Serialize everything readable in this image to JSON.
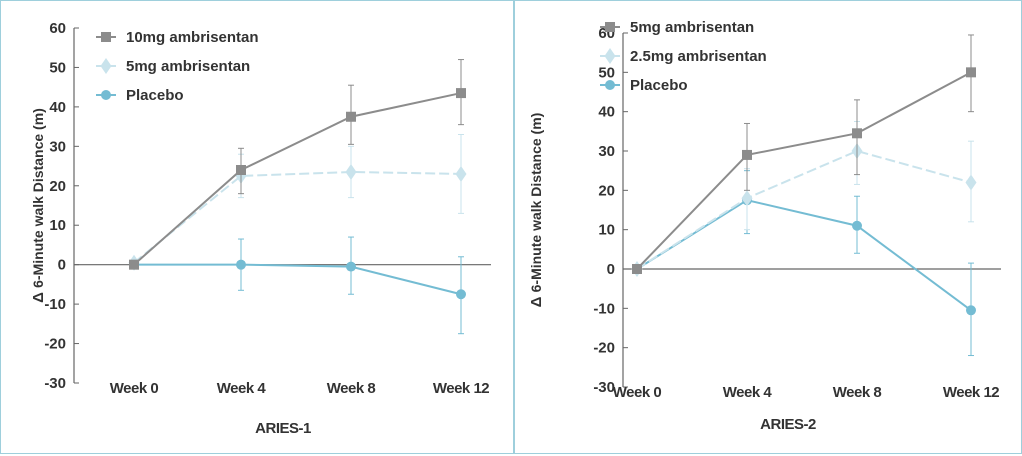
{
  "chart_data": [
    {
      "type": "line",
      "title": "ARIES-1",
      "ylabel": "6-Minute walk Distance (m)",
      "ylabel_prefix": "Δ",
      "categories": [
        "Week 0",
        "Week 4",
        "Week 8",
        "Week 12"
      ],
      "ylim": [
        -30,
        60
      ],
      "yticks": [
        60,
        50,
        40,
        30,
        20,
        10,
        0,
        -10,
        -20,
        -30
      ],
      "ytick_labels": [
        "60",
        "50",
        "40",
        "30",
        "20",
        "10",
        "0",
        "-10",
        "-20",
        "-30"
      ],
      "legend_position": "top-left",
      "series": [
        {
          "name": "10mg ambrisentan",
          "values": [
            0,
            24,
            37.5,
            43.5
          ],
          "err_low": [
            0,
            18,
            30.5,
            35.5
          ],
          "err_high": [
            0,
            29.5,
            45.5,
            52
          ],
          "color": "#8c8c8c",
          "marker": "square",
          "dashed": false
        },
        {
          "name": "5mg ambrisentan",
          "values": [
            0.5,
            22.5,
            23.5,
            23
          ],
          "err_low": [
            0,
            17,
            17,
            13
          ],
          "err_high": [
            1,
            28,
            30,
            33
          ],
          "color": "#c9e3ec",
          "marker": "diamond",
          "dashed": true
        },
        {
          "name": "Placebo",
          "values": [
            0,
            0,
            -0.5,
            -7.5
          ],
          "err_low": [
            0,
            -6.5,
            -7.5,
            -17.5
          ],
          "err_high": [
            0,
            6.5,
            7,
            2
          ],
          "color": "#74bcd3",
          "marker": "circle",
          "dashed": false
        }
      ]
    },
    {
      "type": "line",
      "title": "ARIES-2",
      "ylabel": "6-Minute walk Distance (m)",
      "ylabel_prefix": "Δ",
      "categories": [
        "Week 0",
        "Week 4",
        "Week 8",
        "Week 12"
      ],
      "ylim": [
        -30,
        60
      ],
      "yticks": [
        60,
        50,
        40,
        30,
        20,
        10,
        0,
        -10,
        -20,
        -30
      ],
      "ytick_labels": [
        "60",
        "50",
        "40",
        "30",
        "20",
        "10",
        "0",
        "-10",
        "-20",
        "-30"
      ],
      "legend_position": "top-left",
      "series": [
        {
          "name": "5mg ambrisentan",
          "values": [
            0,
            29,
            34.5,
            50
          ],
          "err_low": [
            0,
            20,
            24,
            40
          ],
          "err_high": [
            0,
            37,
            43,
            59.5
          ],
          "color": "#8c8c8c",
          "marker": "square",
          "dashed": false
        },
        {
          "name": "2.5mg ambrisentan",
          "values": [
            0,
            18,
            30,
            22
          ],
          "err_low": [
            0,
            10,
            21.5,
            12
          ],
          "err_high": [
            0,
            25.5,
            37.5,
            32.5
          ],
          "color": "#c9e3ec",
          "marker": "diamond",
          "dashed": true
        },
        {
          "name": "Placebo",
          "values": [
            0,
            17.5,
            11,
            -10.5
          ],
          "err_low": [
            0,
            9,
            4,
            -22
          ],
          "err_high": [
            0,
            25,
            18.5,
            1.5
          ],
          "color": "#74bcd3",
          "marker": "circle",
          "dashed": false
        }
      ]
    }
  ]
}
